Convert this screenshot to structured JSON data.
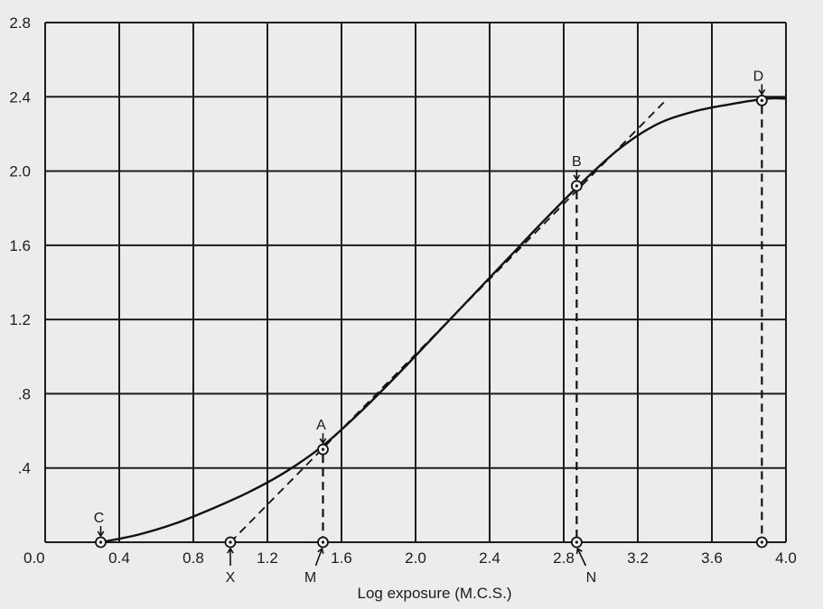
{
  "chart_data": {
    "type": "line",
    "title": "",
    "xlabel": "Log exposure (M.C.S.)",
    "ylabel": "",
    "xlim": [
      0.0,
      4.0
    ],
    "ylim": [
      0.0,
      2.8
    ],
    "x_ticks": [
      "0.0",
      "0.4",
      "0.8",
      "1.2",
      "1.6",
      "2.0",
      "2.4",
      "2.8",
      "3.2",
      "3.6",
      "4.0"
    ],
    "y_ticks": [
      {
        "value": 0.4,
        "label": ".4"
      },
      {
        "value": 0.8,
        "label": ".8"
      },
      {
        "value": 1.2,
        "label": "1.2"
      },
      {
        "value": 1.6,
        "label": "1.6"
      },
      {
        "value": 2.0,
        "label": "2.0"
      },
      {
        "value": 2.4,
        "label": "2.4"
      },
      {
        "value": 2.8,
        "label": "2.8"
      }
    ],
    "grid": true,
    "series": [
      {
        "x": [
          0.3,
          0.5,
          0.7,
          0.9,
          1.1,
          1.3,
          1.5,
          1.7,
          1.9,
          2.1,
          2.3,
          2.5,
          2.7,
          2.9,
          3.1,
          3.3,
          3.5,
          3.7,
          3.9,
          4.0
        ],
        "y": [
          0.0,
          0.04,
          0.1,
          0.18,
          0.27,
          0.38,
          0.52,
          0.7,
          0.9,
          1.11,
          1.32,
          1.53,
          1.74,
          1.94,
          2.12,
          2.25,
          2.32,
          2.36,
          2.39,
          2.39
        ]
      }
    ],
    "tangent_line": {
      "x": [
        1.0,
        3.35
      ],
      "y": [
        0.0,
        2.38
      ]
    },
    "points": [
      {
        "label": "C",
        "x": 0.3,
        "y": 0.0
      },
      {
        "label": "A",
        "x": 1.5,
        "y": 0.5
      },
      {
        "label": "B",
        "x": 2.87,
        "y": 1.92
      },
      {
        "label": "D",
        "x": 3.87,
        "y": 2.38
      }
    ],
    "axis_points": [
      {
        "label": "X",
        "x": 1.0
      },
      {
        "label": "M",
        "x": 1.5
      },
      {
        "label": "N",
        "x": 2.87
      }
    ],
    "drop_lines_from": [
      "A",
      "B",
      "D"
    ]
  }
}
